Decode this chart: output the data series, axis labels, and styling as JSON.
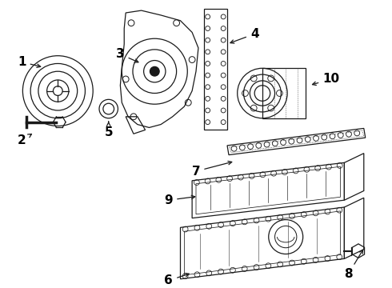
{
  "background_color": "#ffffff",
  "line_color": "#1a1a1a",
  "label_color": "#000000",
  "label_fontsize": 11,
  "figsize": [
    4.9,
    3.6
  ],
  "dpi": 100
}
